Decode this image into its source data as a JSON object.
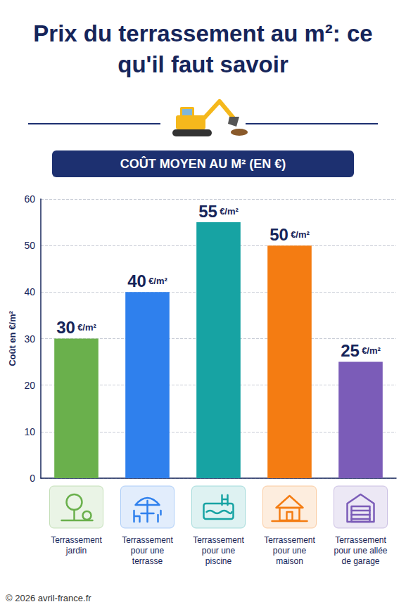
{
  "chart_data": {
    "type": "bar",
    "title": "Prix du terrassement au m²: ce qu'il faut savoir",
    "subtitle": "COÛT MOYEN AU M² (EN €)",
    "y_label": "Coût en €/m²",
    "categories": [
      "Terrassement jardin",
      "Terrassement pour une terrasse",
      "Terrassement pour une piscine",
      "Terrassement pour une maison",
      "Terrassement pour une allée de garage"
    ],
    "values": [
      30,
      40,
      55,
      50,
      25
    ],
    "value_labels": [
      "30 €/m²",
      "40 €/m²",
      "55 €/m²",
      "50 €/m²",
      "25 €/m²"
    ],
    "colors": [
      "#6ab04c",
      "#2f80ed",
      "#17a3a3",
      "#f47c12",
      "#7b5cb8"
    ],
    "ylim": [
      0,
      60
    ],
    "yticks": [
      0,
      10,
      20,
      30,
      40,
      50,
      60
    ],
    "grid": true,
    "data_labels": true,
    "annotations": [
      "© 2026 avril-france.fr"
    ]
  }
}
